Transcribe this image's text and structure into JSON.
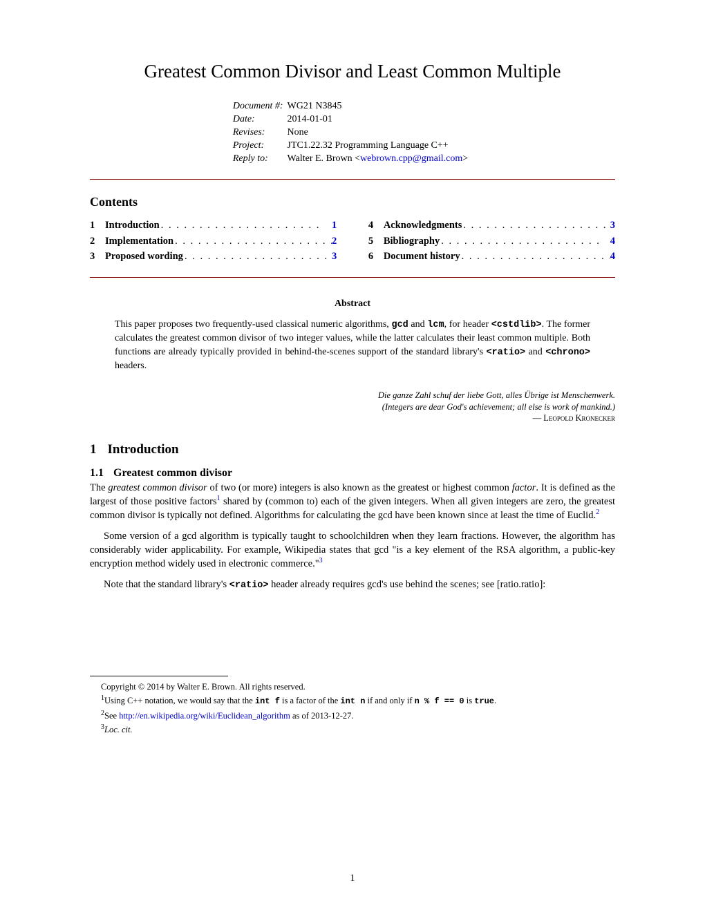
{
  "colors": {
    "link": "#0000cc",
    "rule": "#800000",
    "text": "#000000",
    "background": "#ffffff"
  },
  "typography": {
    "body_font": "Bookman Old Style / URW Bookman L, serif",
    "mono_font": "Courier New, monospace",
    "title_size_pt": 20,
    "body_size_pt": 11,
    "footnote_size_pt": 9
  },
  "title": "Greatest Common Divisor and Least Common Multiple",
  "meta": {
    "document_number_label": "Document #:",
    "document_number": "WG21 N3845",
    "date_label": "Date:",
    "date": "2014-01-01",
    "revises_label": "Revises:",
    "revises": "None",
    "project_label": "Project:",
    "project": "JTC1.22.32 Programming Language C++",
    "reply_to_label": "Reply to:",
    "reply_to_name": "Walter E. Brown ",
    "reply_to_email": "webrown.cpp@gmail.com"
  },
  "contents_heading": "Contents",
  "toc_left": [
    {
      "n": "1",
      "t": "Introduction",
      "p": "1"
    },
    {
      "n": "2",
      "t": "Implementation",
      "p": "2"
    },
    {
      "n": "3",
      "t": "Proposed wording",
      "p": "3"
    }
  ],
  "toc_right": [
    {
      "n": "4",
      "t": "Acknowledgments",
      "p": "3"
    },
    {
      "n": "5",
      "t": "Bibliography",
      "p": "4"
    },
    {
      "n": "6",
      "t": "Document history",
      "p": "4"
    }
  ],
  "abstract_heading": "Abstract",
  "abstract": {
    "pre": "This paper proposes two frequently-used classical numeric algorithms, ",
    "code1": "gcd",
    "mid1": " and ",
    "code2": "lcm",
    "mid2": ", for header ",
    "code3": "<cstdlib>",
    "mid3": ". The former calculates the greatest common divisor of two integer values, while the latter calculates their least common multiple. Both functions are already typically provided in behind-the-scenes support of the standard library's ",
    "code4": "<ratio>",
    "mid4": " and ",
    "code5": "<chrono>",
    "post": " headers."
  },
  "epigraph": {
    "line1": "Die ganze Zahl schuf der liebe Gott, alles Übrige ist Menschenwerk.",
    "line2": "(Integers are dear God's achievement; all else is work of mankind.)",
    "attribution": "— Leopold Kronecker"
  },
  "section1": {
    "num": "1",
    "title": "Introduction"
  },
  "subsection11": {
    "num": "1.1",
    "title": "Greatest common divisor"
  },
  "para1": {
    "a": "The ",
    "i1": "greatest common divisor",
    "b": " of two (or more) integers is also known as the greatest or highest common ",
    "i2": "factor",
    "c": ". It is defined as the largest of those positive factors",
    "fn1": "1",
    "d": " shared by (common to) each of the given integers. When all given integers are zero, the greatest common divisor is typically not defined. Algorithms for calculating the gcd have been known since at least the time of Euclid.",
    "fn2": "2"
  },
  "para2": {
    "a": "Some version of a gcd algorithm is typically taught to schoolchildren when they learn fractions. However, the algorithm has considerably wider applicability.  For example, Wikipedia states that gcd \"is a key element of the RSA algorithm, a public-key encryption method widely used in electronic commerce.\"",
    "fn3": "3"
  },
  "para3": {
    "a": "Note that the standard library's ",
    "code": "<ratio>",
    "b": " header already requires gcd's use behind the scenes; see [ratio.ratio]:"
  },
  "footnotes": {
    "copyright": "Copyright © 2014 by Walter E. Brown. All rights reserved.",
    "f1": {
      "n": "1",
      "a": "Using C++ notation, we would say that the ",
      "c1": "int f",
      "b": " is a factor of the ",
      "c2": "int n",
      "c": " if and only if ",
      "c3": "n % f == 0",
      "d": " is ",
      "c4": "true",
      "e": "."
    },
    "f2": {
      "n": "2",
      "a": "See ",
      "link": "http://en.wikipedia.org/wiki/Euclidean_algorithm",
      "b": " as of 2013-12-27."
    },
    "f3": {
      "n": "3",
      "a": "Loc. cit."
    }
  },
  "page_number": "1"
}
